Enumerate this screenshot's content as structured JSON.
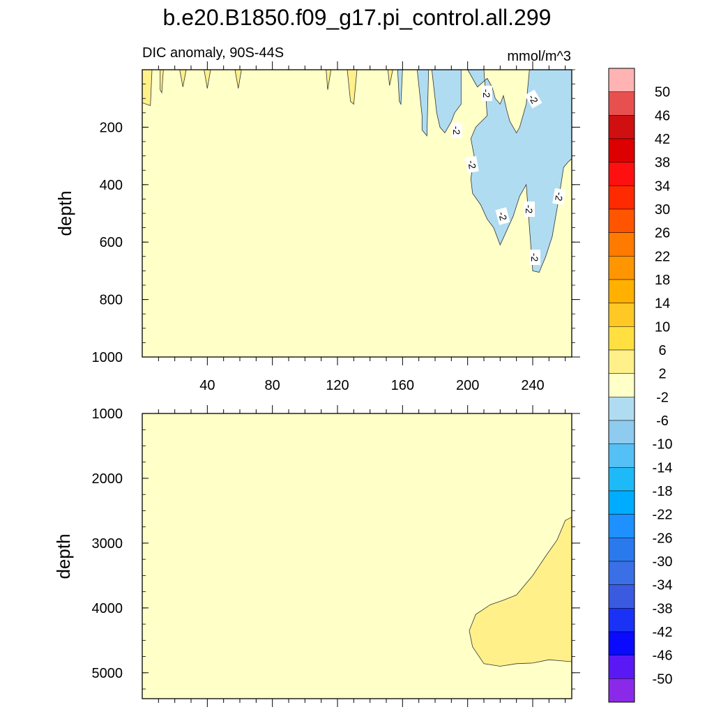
{
  "chart_data": {
    "type": "contour",
    "title": "b.e20.B1850.f09_g17.pi_control.all.299",
    "subtitle_left": "DIC anomaly, 90S-44S",
    "units": "mmol/m^3",
    "colorbar": {
      "labels": [
        "50",
        "46",
        "42",
        "38",
        "34",
        "30",
        "26",
        "22",
        "18",
        "14",
        "10",
        "6",
        "2",
        "-2",
        "-6",
        "-10",
        "-14",
        "-18",
        "-22",
        "-26",
        "-30",
        "-34",
        "-38",
        "-42",
        "-46",
        "-50"
      ],
      "colors": [
        "#ffb3b3",
        "#e85050",
        "#d01010",
        "#dd0000",
        "#ff1010",
        "#ff2a00",
        "#ff5500",
        "#ff7a00",
        "#ff9500",
        "#ffb000",
        "#ffc825",
        "#ffe040",
        "#fff08a",
        "#ffffc8",
        "#b0dcf2",
        "#8ecbee",
        "#55c0f5",
        "#1ebaf7",
        "#00acff",
        "#1e90ff",
        "#2a7aee",
        "#3a6fe6",
        "#3a5ae0",
        "#1a32f5",
        "#0a0aff",
        "#5a18f5",
        "#8a2ae8"
      ]
    },
    "panels": [
      {
        "name": "upper",
        "ylabel": "depth",
        "ylim": [
          0,
          1000
        ],
        "xlim": [
          0,
          264
        ],
        "yticks": [
          "200",
          "400",
          "600",
          "800",
          "1000"
        ],
        "xticks": [
          "40",
          "80",
          "120",
          "160",
          "200",
          "240"
        ],
        "contour_labels": [
          "-2",
          "-2",
          "-2",
          "-2",
          "-2",
          "-2",
          "-2",
          "-2"
        ],
        "regions": [
          {
            "level": "2 to 6",
            "color": "#fff08a",
            "points": [
              [
                0,
                0
              ],
              [
                6,
                0
              ],
              [
                5,
                125
              ],
              [
                0,
                115
              ]
            ]
          },
          {
            "level": "2 to 6",
            "color": "#fff08a",
            "points": [
              [
                11,
                0
              ],
              [
                13,
                0
              ],
              [
                12,
                80
              ],
              [
                11,
                70
              ]
            ]
          },
          {
            "level": "2 to 6",
            "color": "#fff08a",
            "points": [
              [
                23,
                0
              ],
              [
                27,
                0
              ],
              [
                25,
                60
              ]
            ]
          },
          {
            "level": "2 to 6",
            "color": "#fff08a",
            "points": [
              [
                38,
                0
              ],
              [
                42,
                0
              ],
              [
                40,
                65
              ]
            ]
          },
          {
            "level": "2 to 6",
            "color": "#fff08a",
            "points": [
              [
                57,
                0
              ],
              [
                61,
                0
              ],
              [
                59,
                65
              ]
            ]
          },
          {
            "level": "2 to 6",
            "color": "#fff08a",
            "points": [
              [
                113,
                0
              ],
              [
                116,
                0
              ],
              [
                114,
                70
              ]
            ]
          },
          {
            "level": "2 to 6",
            "color": "#fff08a",
            "points": [
              [
                126,
                0
              ],
              [
                132,
                0
              ],
              [
                130,
                120
              ],
              [
                128,
                110
              ]
            ]
          },
          {
            "level": "2 to 6",
            "color": "#fff08a",
            "points": [
              [
                151,
                0
              ],
              [
                154,
                0
              ],
              [
                152,
                55
              ]
            ]
          },
          {
            "level": "-6 to -2",
            "color": "#b0dcf2",
            "points": [
              [
                157,
                0
              ],
              [
                160,
                0
              ],
              [
                159,
                120
              ],
              [
                158,
                110
              ]
            ]
          },
          {
            "level": "-6 to -2",
            "color": "#b0dcf2",
            "points": [
              [
                169,
                0
              ],
              [
                176,
                0
              ],
              [
                175,
                230
              ],
              [
                172,
                210
              ],
              [
                172,
                160
              ]
            ]
          },
          {
            "level": "-6 to -2",
            "color": "#b0dcf2",
            "points": [
              [
                178,
                0
              ],
              [
                196,
                0
              ],
              [
                196,
                120
              ],
              [
                192,
                150
              ],
              [
                190,
                180
              ],
              [
                186,
                220
              ],
              [
                183,
                200
              ],
              [
                181,
                150
              ]
            ]
          },
          {
            "level": "-6 to -2",
            "color": "#b0dcf2",
            "points": [
              [
                200,
                0
              ],
              [
                210,
                0
              ],
              [
                212,
                160
              ],
              [
                205,
                200
              ],
              [
                202,
                240
              ],
              [
                204,
                300
              ],
              [
                202,
                380
              ],
              [
                203,
                430
              ],
              [
                208,
                470
              ],
              [
                212,
                520
              ],
              [
                216,
                550
              ],
              [
                220,
                610
              ],
              [
                224,
                560
              ],
              [
                228,
                510
              ],
              [
                232,
                440
              ],
              [
                236,
                400
              ],
              [
                240,
                700
              ],
              [
                244,
                705
              ],
              [
                248,
                650
              ],
              [
                252,
                580
              ],
              [
                256,
                450
              ],
              [
                259,
                340
              ],
              [
                262,
                320
              ],
              [
                264,
                310
              ],
              [
                264,
                0
              ],
              [
                238,
                0
              ],
              [
                236,
                120
              ],
              [
                232,
                200
              ],
              [
                230,
                220
              ],
              [
                226,
                180
              ],
              [
                224,
                140
              ],
              [
                222,
                90
              ],
              [
                220,
                120
              ],
              [
                217,
                100
              ],
              [
                215,
                60
              ],
              [
                212,
                30
              ],
              [
                206,
                60
              ]
            ]
          }
        ]
      },
      {
        "name": "lower",
        "ylabel": "depth",
        "ylim": [
          1000,
          5400
        ],
        "xlim": [
          0,
          264
        ],
        "yticks": [
          "1000",
          "2000",
          "3000",
          "4000",
          "5000"
        ],
        "xticks": [],
        "contour_labels": [],
        "regions": [
          {
            "level": "2 to 6",
            "color": "#fff08a",
            "points": [
              [
                264,
                2600
              ],
              [
                260,
                2650
              ],
              [
                255,
                2950
              ],
              [
                248,
                3200
              ],
              [
                240,
                3500
              ],
              [
                230,
                3800
              ],
              [
                222,
                3880
              ],
              [
                214,
                3950
              ],
              [
                205,
                4100
              ],
              [
                201,
                4350
              ],
              [
                203,
                4600
              ],
              [
                210,
                4860
              ],
              [
                220,
                4900
              ],
              [
                230,
                4860
              ],
              [
                240,
                4850
              ],
              [
                250,
                4800
              ],
              [
                264,
                4830
              ]
            ]
          }
        ]
      }
    ]
  }
}
